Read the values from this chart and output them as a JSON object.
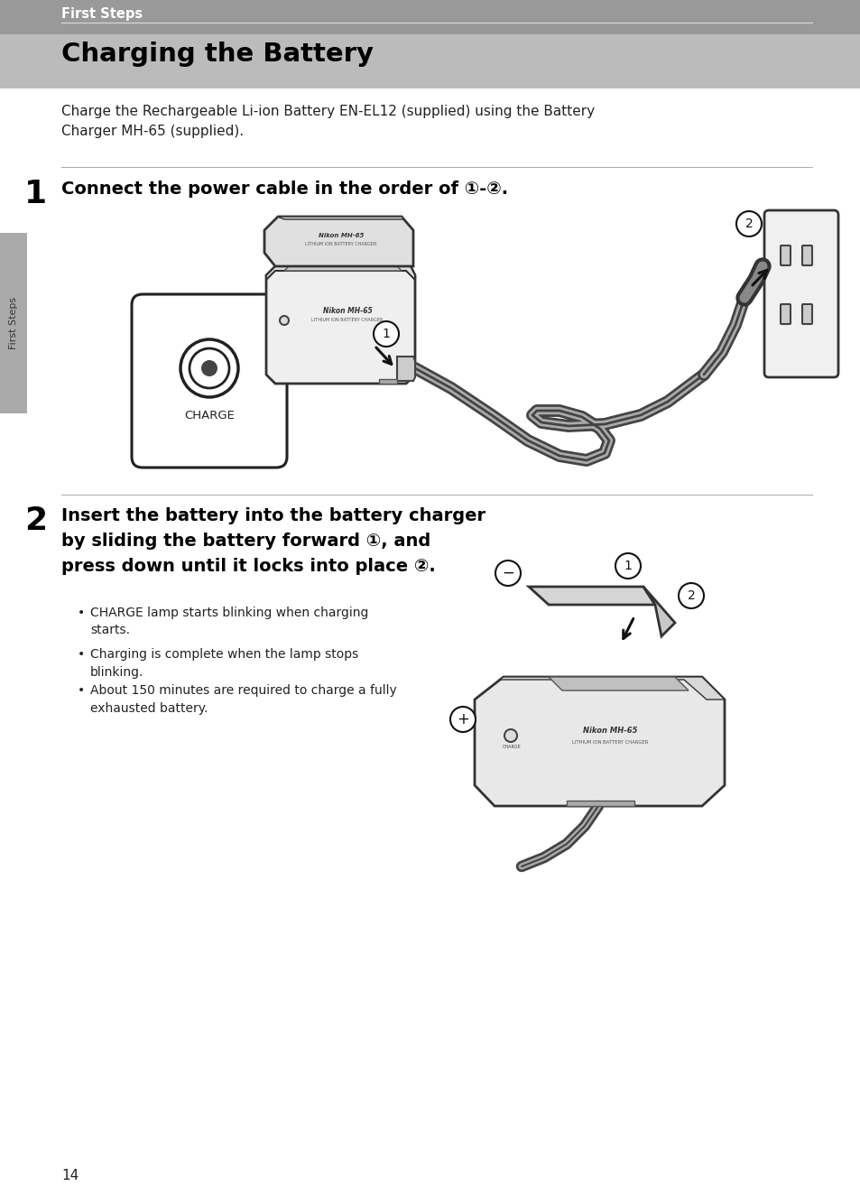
{
  "page_bg": "#ffffff",
  "header_bg": "#999999",
  "header_text": "First Steps",
  "header_text_color": "#ffffff",
  "header_line_color": "#cccccc",
  "section_title": "Charging the Battery",
  "section_title_color": "#000000",
  "section_bg": "#bbbbbb",
  "intro_text": "Charge the Rechargeable Li-ion Battery EN-EL12 (supplied) using the Battery\nCharger MH-65 (supplied).",
  "step1_number": "1",
  "step1_text": "Connect the power cable in the order of ①-②.",
  "step2_number": "2",
  "step2_text": "Insert the battery into the battery charger\nby sliding the battery forward ①, and\npress down until it locks into place ②.",
  "bullet1": "CHARGE lamp starts blinking when charging\nstarts.",
  "bullet2": "Charging is complete when the lamp stops\nblinking.",
  "bullet3": "About 150 minutes are required to charge a fully\nexhausted battery.",
  "sidebar_text": "First Steps",
  "sidebar_bg": "#aaaaaa",
  "page_number": "14",
  "divider_color": "#aaaaaa",
  "step_number_color": "#000000"
}
